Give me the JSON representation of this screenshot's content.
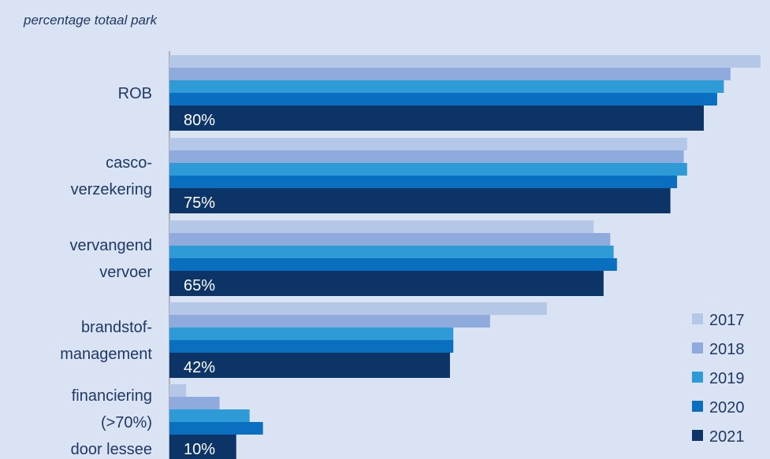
{
  "chart_data": {
    "type": "bar",
    "orientation": "horizontal",
    "title": "percentage totaal park",
    "categories": [
      [
        "ROB"
      ],
      [
        "casco-",
        "verzekering"
      ],
      [
        "vervangend",
        "vervoer"
      ],
      [
        "brandstof-",
        "management"
      ],
      [
        "financiering",
        "(>70%)",
        "door lessee"
      ]
    ],
    "series": [
      {
        "name": "2017",
        "color": "#b4c7e7",
        "values": [
          88.5,
          77.5,
          63.5,
          56.5,
          2.5
        ]
      },
      {
        "name": "2018",
        "color": "#8faadc",
        "values": [
          84,
          77,
          66,
          48,
          7.5
        ]
      },
      {
        "name": "2019",
        "color": "#2e9bd6",
        "values": [
          83,
          77.5,
          66.5,
          42.5,
          12
        ]
      },
      {
        "name": "2020",
        "color": "#0b6fbf",
        "values": [
          82,
          76,
          67,
          42.5,
          14
        ]
      },
      {
        "name": "2021",
        "color": "#0d3466",
        "values": [
          80,
          75,
          65,
          42,
          10
        ]
      }
    ],
    "data_labels": [
      "80%",
      "75%",
      "65%",
      "42%",
      "10%"
    ],
    "legend_position": "bottom-right",
    "grid": false
  }
}
